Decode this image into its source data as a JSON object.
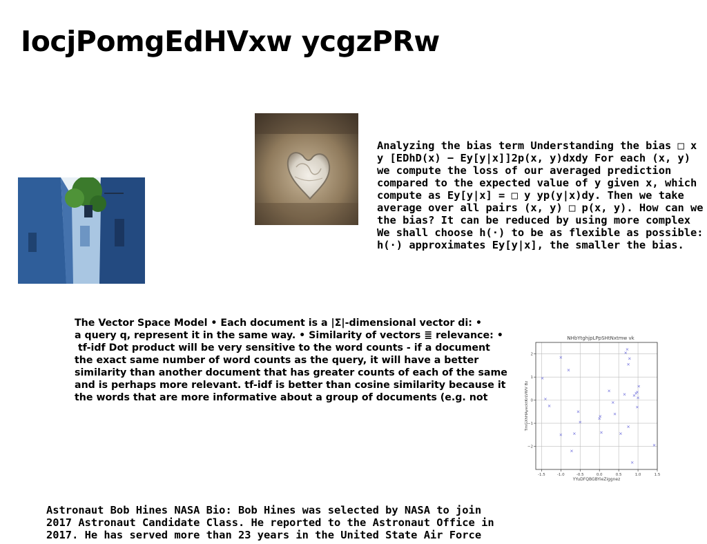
{
  "title": "IocjPomgEdHVxw ycgzPRw",
  "images": {
    "alley_photo": "photo-alley-icon",
    "stone_photo": "photo-stone-icon"
  },
  "paragraphs": {
    "bias": [
      "Analyzing the bias term Understanding the bias □ x",
      "y [EDhD(x) − Ey[y|x]]2p(x, y)dxdy For each (x, y)",
      "we compute the loss of our averaged prediction",
      "compared to the expected value of y given x, which",
      "compute as Ey[y|x] = □ y yp(y|x)dy. Then we take",
      "average over all pairs (x, y) □ p(x, y). How can we",
      "the bias? It can be reduced by using more complex",
      "We shall choose h(·) to be as flexible as possible: the",
      "h(·) approximates Ey[y|x], the smaller the bias."
    ],
    "vsm": [
      "The Vector Space Model • Each document is a |Σ|-dimensional vector di: •",
      "a query q, represent it in the same way. • Similarity of vectors ≣ relevance: •",
      " tf-idf Dot product will be very sensitive to the word counts - if a document",
      "the exact same number of word counts as the query, it will have a better",
      "similarity than another document that has greater counts of each of the same",
      "and is perhaps more relevant. tf-idf is better than cosine similarity because it",
      "the words that are more informative about a group of documents (e.g. not"
    ],
    "astronaut": [
      "Astronaut Bob Hines NASA Bio: Bob Hines was selected by NASA to join",
      "2017 Astronaut Candidate Class. He reported to the Astronaut Office in",
      "2017. He has served more than 23 years in the United State Air Force"
    ]
  },
  "chart_data": {
    "type": "scatter",
    "title": "NHbYtghjpLPpSHtNxtmw vk",
    "xlabel": "YYuDFQBGBYieZiggnez",
    "ylabel": "TmGXhHAyecktKrLVWV Bz",
    "xlim": [
      -1.65,
      1.5
    ],
    "ylim": [
      -3.0,
      2.5
    ],
    "xticks": [
      -1.5,
      -1.0,
      -0.5,
      0.0,
      0.5,
      1.0,
      1.5
    ],
    "yticks": [
      -2,
      -1,
      0,
      1,
      2
    ],
    "grid": true,
    "marker": "x",
    "color": "#8080e0",
    "points": [
      [
        -1.48,
        0.95
      ],
      [
        -1.4,
        0.05
      ],
      [
        -1.3,
        -0.25
      ],
      [
        -1.0,
        1.85
      ],
      [
        -1.0,
        -1.5
      ],
      [
        -0.8,
        1.3
      ],
      [
        -0.72,
        -2.2
      ],
      [
        -0.65,
        -1.45
      ],
      [
        -0.55,
        -0.5
      ],
      [
        -0.5,
        -0.95
      ],
      [
        0.0,
        -0.8
      ],
      [
        0.02,
        -0.7
      ],
      [
        0.05,
        -1.4
      ],
      [
        0.25,
        0.4
      ],
      [
        0.35,
        -0.1
      ],
      [
        0.4,
        -0.6
      ],
      [
        0.55,
        -1.45
      ],
      [
        0.65,
        0.25
      ],
      [
        0.68,
        2.05
      ],
      [
        0.72,
        2.2
      ],
      [
        0.75,
        1.55
      ],
      [
        0.75,
        -1.15
      ],
      [
        0.78,
        1.8
      ],
      [
        0.85,
        -2.7
      ],
      [
        0.9,
        0.2
      ],
      [
        0.95,
        0.3
      ],
      [
        0.98,
        0.35
      ],
      [
        0.98,
        -0.3
      ],
      [
        1.0,
        0.1
      ],
      [
        1.02,
        0.6
      ],
      [
        1.42,
        -1.95
      ]
    ]
  }
}
